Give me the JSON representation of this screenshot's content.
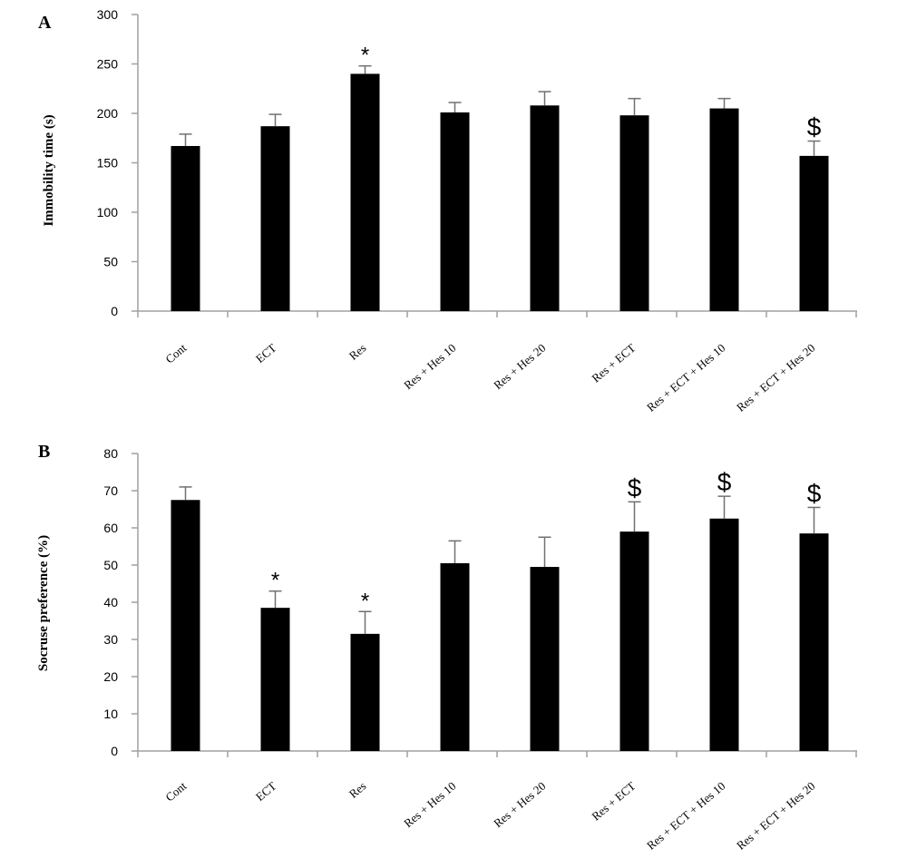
{
  "chart_data": [
    {
      "type": "bar",
      "panel_label": "A",
      "categories": [
        "Cont",
        "ECT",
        "Res",
        "Res + Hes 10",
        "Res + Hes 20",
        "Res + ECT",
        "Res + ECT + Hes 10",
        "Res + ECT + Hes 20"
      ],
      "values": [
        167,
        187,
        240,
        201,
        208,
        198,
        205,
        157
      ],
      "errors": [
        12,
        12,
        8,
        10,
        14,
        17,
        10,
        15
      ],
      "markers": [
        "",
        "",
        "*",
        "",
        "",
        "",
        "",
        "$"
      ],
      "ylabel": "Immobility time (s)",
      "xlabel": "",
      "ylim": [
        0,
        300
      ],
      "yticks": [
        0,
        50,
        100,
        150,
        200,
        250,
        300
      ],
      "bar_color": "#000000",
      "grid": false
    },
    {
      "type": "bar",
      "panel_label": "B",
      "categories": [
        "Cont",
        "ECT",
        "Res",
        "Res + Hes 10",
        "Res + Hes 20",
        "Res + ECT",
        "Res + ECT + Hes 10",
        "Res + ECT + Hes 20"
      ],
      "values": [
        67.5,
        38.5,
        31.5,
        50.5,
        49.5,
        59,
        62.5,
        58.5
      ],
      "errors": [
        3.5,
        4.5,
        6,
        6,
        8,
        8,
        6,
        7
      ],
      "markers": [
        "",
        "*",
        "*",
        "",
        "",
        "$",
        "$",
        "$"
      ],
      "ylabel": "Socruse preference (%)",
      "xlabel": "",
      "ylim": [
        0,
        80
      ],
      "yticks": [
        0,
        10,
        20,
        30,
        40,
        50,
        60,
        70,
        80
      ],
      "bar_color": "#000000",
      "grid": false
    }
  ]
}
